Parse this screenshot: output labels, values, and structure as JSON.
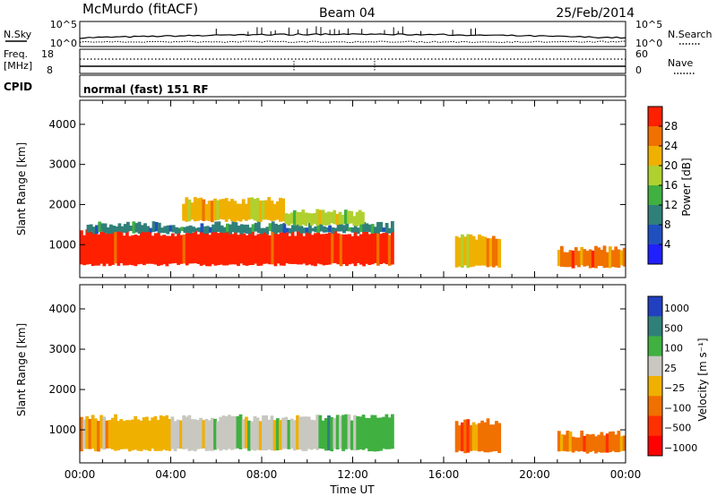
{
  "header": {
    "station": "McMurdo (fitACF)",
    "beam": "Beam 04",
    "date": "25/Feb/2014"
  },
  "top_panels": {
    "nsky_label": "N.Sky",
    "nsky_ticks": [
      "10^5",
      "10^0"
    ],
    "nsearch_label": "N.Search",
    "nsearch_ticks": [
      "10^5",
      "10^0"
    ],
    "freq_label": "Freq.",
    "freq_unit": "[MHz]",
    "freq_ticks": [
      "18",
      "8"
    ],
    "nave_label": "Nave",
    "nave_ticks": [
      "60",
      "0"
    ],
    "cpid_label": "CPID",
    "cpid_text": "normal (fast) 151 RF"
  },
  "chart_data": [
    {
      "type": "heatmap",
      "name": "power",
      "ylabel": "Slant Range [km]",
      "xlabel": "",
      "ylim": [
        180,
        4600
      ],
      "yticks": [
        "1000",
        "2000",
        "3000",
        "4000"
      ],
      "colorbar_label": "Power [dB]",
      "colorbar_ticks": [
        "28",
        "24",
        "20",
        "16",
        "12",
        "8",
        "4"
      ],
      "colors": [
        "#2020ff",
        "#2050c0",
        "#30807a",
        "#40b040",
        "#b0d030",
        "#f0b000",
        "#f07000",
        "#ff2000"
      ],
      "regions": [
        {
          "x": [
            0.0,
            13.8
          ],
          "y": [
            500,
            1300
          ],
          "level": 7
        },
        {
          "x": [
            0.3,
            13.8
          ],
          "y": [
            1300,
            1500
          ],
          "level": 2
        },
        {
          "x": [
            4.5,
            9.0
          ],
          "y": [
            1600,
            2100
          ],
          "level": 5
        },
        {
          "x": [
            9.0,
            12.5
          ],
          "y": [
            1500,
            1800
          ],
          "level": 4
        },
        {
          "x": [
            16.5,
            18.5
          ],
          "y": [
            450,
            1200
          ],
          "level": 5
        },
        {
          "x": [
            21.0,
            24.0
          ],
          "y": [
            450,
            900
          ],
          "level": 6
        }
      ]
    },
    {
      "type": "heatmap",
      "name": "velocity",
      "ylabel": "Slant Range [km]",
      "xlabel": "Time UT",
      "ylim": [
        180,
        4600
      ],
      "yticks": [
        "1000",
        "2000",
        "3000",
        "4000"
      ],
      "xticks": [
        "00:00",
        "04:00",
        "08:00",
        "12:00",
        "16:00",
        "20:00",
        "00:00"
      ],
      "colorbar_label": "Velocity [m s⁻¹]",
      "colorbar_ticks": [
        "1000",
        "500",
        "100",
        "25",
        "−25",
        "−100",
        "−500",
        "−1000"
      ],
      "colors": [
        "#2040c0",
        "#30807a",
        "#40b040",
        "#c8c8c0",
        "#f0b000",
        "#f07000",
        "#ff3000",
        "#ff0000"
      ],
      "regions": [
        {
          "x": [
            0.0,
            4.0
          ],
          "y": [
            500,
            1300
          ],
          "level": 4
        },
        {
          "x": [
            4.0,
            10.5
          ],
          "y": [
            500,
            1300
          ],
          "level": 3
        },
        {
          "x": [
            10.5,
            13.8
          ],
          "y": [
            500,
            1300
          ],
          "level": 2
        },
        {
          "x": [
            16.5,
            18.5
          ],
          "y": [
            450,
            1200
          ],
          "level": 5
        },
        {
          "x": [
            21.0,
            24.0
          ],
          "y": [
            450,
            900
          ],
          "level": 5
        }
      ]
    }
  ]
}
